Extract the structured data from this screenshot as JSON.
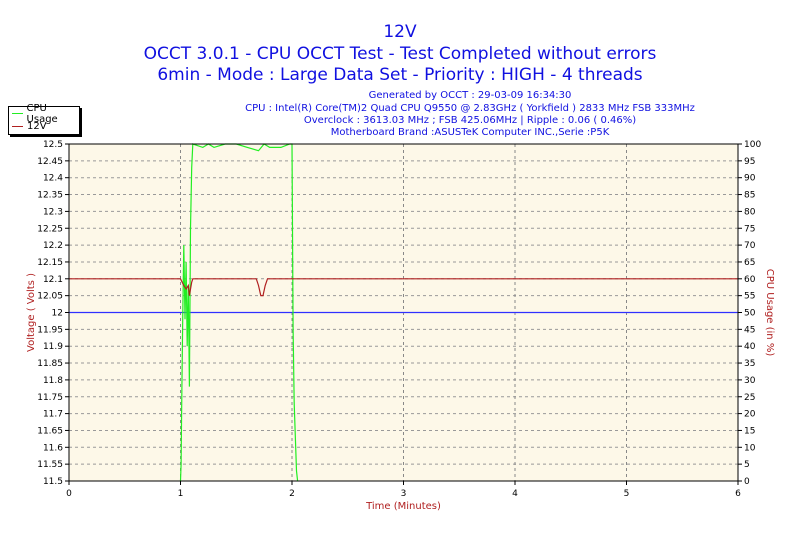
{
  "header": {
    "title": "12V",
    "subtitle": "OCCT 3.0.1 - CPU OCCT Test - Test Completed without errors",
    "subtitle2": "6min - Mode : Large Data Set - Priority : HIGH - 4 threads",
    "info": [
      "Generated by OCCT : 29-03-09 16:34:30",
      "CPU : Intel(R) Core(TM)2 Quad CPU Q9550 @ 2.83GHz ( Yorkfield ) 2833 MHz FSB 333MHz",
      "Overclock : 3613.03 MHz ; FSB 425.06MHz | Ripple : 0.06 ( 0.46%)",
      "Motherboard Brand :ASUSTeK Computer INC.,Serie :P5K"
    ]
  },
  "chart_data": {
    "type": "line",
    "title": "12V",
    "xlabel": "Time (Minutes)",
    "ylabel": "Voltage ( Volts )",
    "y2label": "CPU Usage (in %)",
    "xlim": [
      0,
      6
    ],
    "ylim": [
      11.5,
      12.5
    ],
    "y2lim": [
      0,
      100
    ],
    "xticks": [
      "0",
      "1",
      "2",
      "3",
      "4",
      "5",
      "6"
    ],
    "yticks": [
      "11.5",
      "11.55",
      "11.6",
      "11.65",
      "11.7",
      "11.75",
      "11.8",
      "11.85",
      "11.9",
      "11.95",
      "12",
      "12.05",
      "12.1",
      "12.15",
      "12.2",
      "12.25",
      "12.3",
      "12.35",
      "12.4",
      "12.45",
      "12.5"
    ],
    "y2ticks": [
      "0",
      "5",
      "10",
      "15",
      "20",
      "25",
      "30",
      "35",
      "40",
      "45",
      "50",
      "55",
      "60",
      "65",
      "70",
      "75",
      "80",
      "85",
      "90",
      "95",
      "100"
    ],
    "grid": true,
    "legend": {
      "placement": "top-left",
      "entries": [
        "CPU Usage",
        "12V"
      ]
    },
    "reference_line": {
      "value": 12.0,
      "color": "#3030ff"
    },
    "series": [
      {
        "name": "CPU Usage",
        "axis": "right",
        "color": "#22ee22",
        "x": [
          1.0,
          1.005,
          1.01,
          1.02,
          1.03,
          1.04,
          1.05,
          1.06,
          1.07,
          1.08,
          1.09,
          1.1,
          1.11,
          1.2,
          1.25,
          1.3,
          1.4,
          1.5,
          1.6,
          1.7,
          1.75,
          1.8,
          1.9,
          1.98,
          2.0,
          2.01,
          2.02,
          2.04,
          2.05
        ],
        "y": [
          0,
          5,
          20,
          48,
          70,
          48,
          65,
          40,
          58,
          28,
          75,
          93,
          100,
          99,
          100,
          99,
          100,
          100,
          99,
          98,
          100,
          99,
          99,
          100,
          100,
          45,
          23,
          3,
          0
        ]
      },
      {
        "name": "12V",
        "axis": "left",
        "color": "#b02020",
        "x": [
          0,
          1.0,
          1.03,
          1.05,
          1.07,
          1.08,
          1.1,
          1.11,
          1.68,
          1.7,
          1.72,
          1.74,
          1.76,
          1.78,
          6
        ],
        "y": [
          12.1,
          12.1,
          12.08,
          12.07,
          12.08,
          12.05,
          12.09,
          12.1,
          12.1,
          12.08,
          12.05,
          12.05,
          12.08,
          12.1,
          12.1
        ]
      }
    ]
  }
}
